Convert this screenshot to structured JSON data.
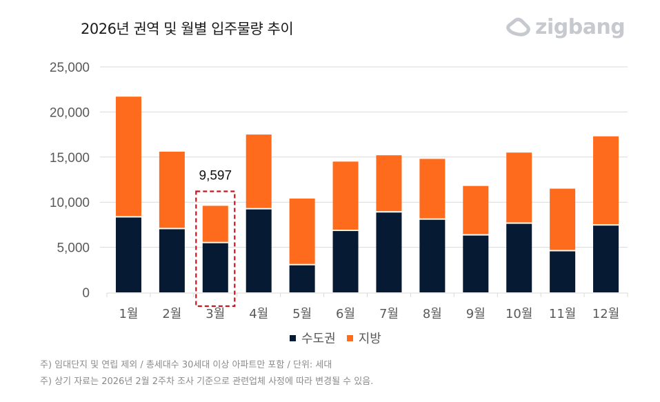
{
  "header": {
    "title": "2026년 권역 및 월별 입주물량 추이",
    "brand": "zigbang",
    "brand_icon": "zigbang-logo-icon"
  },
  "colors": {
    "capital": "#061a33",
    "regional": "#ff6b1c",
    "highlight_box": "#c8141e",
    "grid": "#d9d9d9"
  },
  "chart_data": {
    "type": "bar",
    "stacked": true,
    "title": "2026년 권역 및 월별 입주물량 추이",
    "xlabel": "",
    "ylabel": "",
    "categories": [
      "1월",
      "2월",
      "3월",
      "4월",
      "5월",
      "6월",
      "7월",
      "8월",
      "9월",
      "10월",
      "11월",
      "12월"
    ],
    "series": [
      {
        "name": "수도권",
        "values": [
          8300,
          7000,
          5450,
          9200,
          3000,
          6800,
          8850,
          8050,
          6300,
          7600,
          4550,
          7400
        ]
      },
      {
        "name": "지방",
        "values": [
          13400,
          8600,
          4147,
          8300,
          7400,
          7700,
          6350,
          6750,
          5500,
          7900,
          6950,
          9900
        ]
      }
    ],
    "ylim": [
      0,
      25000
    ],
    "yticks": [
      0,
      5000,
      10000,
      15000,
      20000,
      25000
    ],
    "ytick_labels": [
      "0",
      "5,000",
      "10,000",
      "15,000",
      "20,000",
      "25,000"
    ],
    "grid": true,
    "legend": {
      "position": "bottom-center",
      "entries": [
        "수도권",
        "지방"
      ]
    },
    "annotations": [
      {
        "category": "3월",
        "text": "9,597",
        "highlight": "dashed-box"
      }
    ]
  },
  "legend": {
    "items": [
      {
        "label": "수도권"
      },
      {
        "label": "지방"
      }
    ]
  },
  "notes": [
    "주) 임대단지 및 연립 제외 / 총세대수 30세대 이상 아파트만 포함 / 단위: 세대",
    "주) 상기 자료는 2026년 2월 2주차 조사 기준으로 관련업체 사정에 따라 변경될 수 있음."
  ]
}
